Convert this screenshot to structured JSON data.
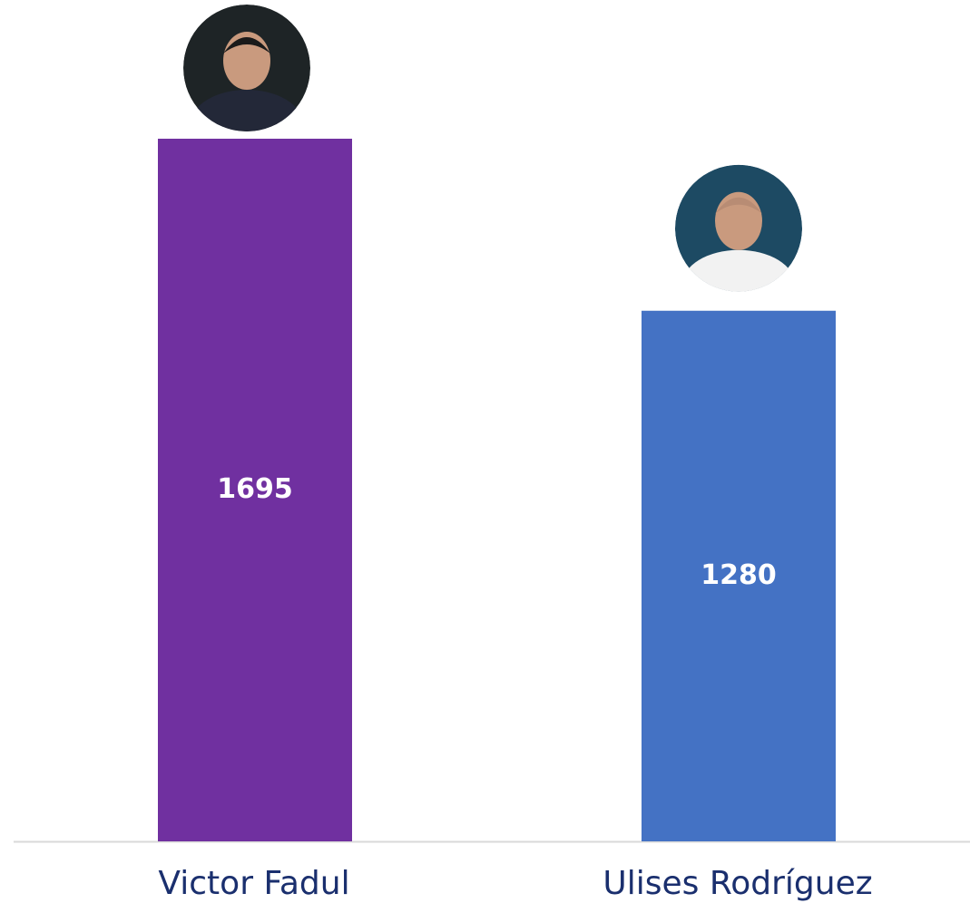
{
  "chart_data": {
    "type": "bar",
    "categories": [
      "Victor Fadul",
      "Ulises Rodríguez"
    ],
    "values": [
      1695,
      1280
    ],
    "colors": [
      "#7030a0",
      "#4472c4"
    ],
    "data_labels": true
  }
}
